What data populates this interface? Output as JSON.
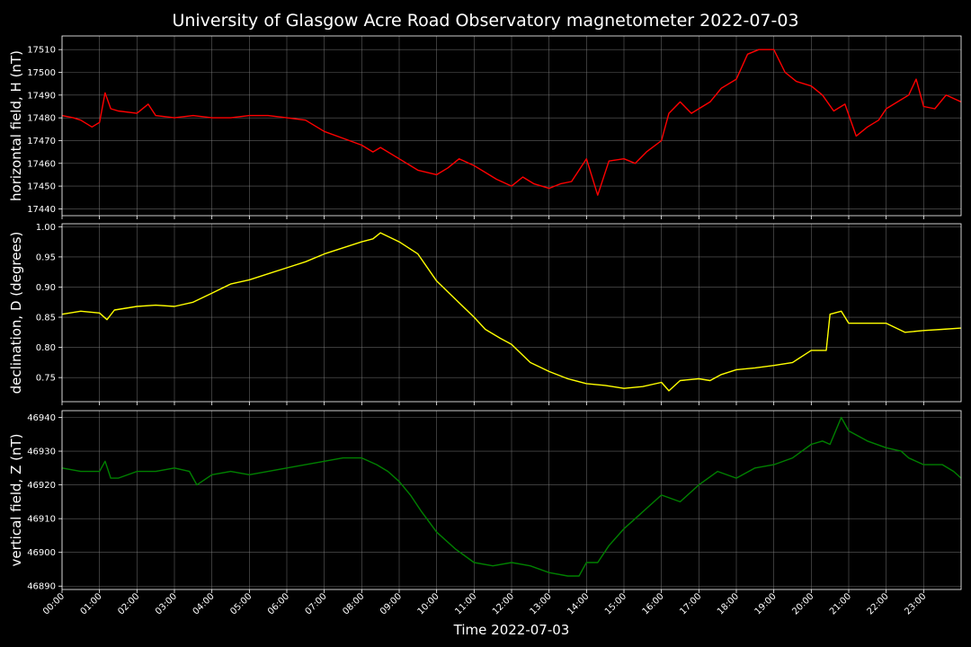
{
  "chart_data": {
    "title": "University of Glasgow Acre Road Observatory magnetometer 2022-07-03",
    "type": "line",
    "xlabel": "Time 2022-07-03",
    "x_tick_labels": [
      "00:00",
      "01:00",
      "02:00",
      "03:00",
      "04:00",
      "05:00",
      "06:00",
      "07:00",
      "08:00",
      "09:00",
      "10:00",
      "11:00",
      "12:00",
      "13:00",
      "14:00",
      "15:00",
      "16:00",
      "17:00",
      "18:00",
      "19:00",
      "20:00",
      "21:00",
      "22:00",
      "23:00"
    ],
    "xlim_hours": [
      0,
      24
    ],
    "grid": true,
    "panels": [
      {
        "ylabel": "horizontal field, H (nT)",
        "color": "#ff0000",
        "ylim": [
          17437,
          17516
        ],
        "yticks": [
          17440,
          17450,
          17460,
          17470,
          17480,
          17490,
          17500,
          17510
        ],
        "x": [
          0,
          0.3,
          0.5,
          0.8,
          1.0,
          1.15,
          1.3,
          1.5,
          2.0,
          2.3,
          2.5,
          3.0,
          3.5,
          4.0,
          4.5,
          5.0,
          5.5,
          6.0,
          6.5,
          7.0,
          7.5,
          8.0,
          8.3,
          8.5,
          9.0,
          9.5,
          10.0,
          10.3,
          10.6,
          11.0,
          11.3,
          11.6,
          12.0,
          12.3,
          12.6,
          13.0,
          13.3,
          13.6,
          14.0,
          14.3,
          14.6,
          15.0,
          15.3,
          15.6,
          16.0,
          16.2,
          16.5,
          16.8,
          17.0,
          17.3,
          17.6,
          18.0,
          18.3,
          18.6,
          19.0,
          19.3,
          19.6,
          20.0,
          20.3,
          20.6,
          20.9,
          21.2,
          21.5,
          21.8,
          22.0,
          22.3,
          22.6,
          22.8,
          23.0,
          23.3,
          23.6,
          24.0
        ],
        "values": [
          17481,
          17480,
          17479,
          17476,
          17478,
          17491,
          17484,
          17483,
          17482,
          17486,
          17481,
          17480,
          17481,
          17480,
          17480,
          17481,
          17481,
          17480,
          17479,
          17474,
          17471,
          17468,
          17465,
          17467,
          17462,
          17457,
          17455,
          17458,
          17462,
          17459,
          17456,
          17453,
          17450,
          17454,
          17451,
          17449,
          17451,
          17452,
          17462,
          17446,
          17461,
          17462,
          17460,
          17465,
          17470,
          17482,
          17487,
          17482,
          17484,
          17487,
          17493,
          17497,
          17508,
          17510,
          17510,
          17500,
          17496,
          17494,
          17490,
          17483,
          17486,
          17472,
          17476,
          17479,
          17484,
          17487,
          17490,
          17497,
          17485,
          17484,
          17490,
          17487
        ]
      },
      {
        "ylabel": "declination, D (degrees)",
        "color": "#ffff00",
        "ylim": [
          0.71,
          1.005
        ],
        "yticks": [
          0.75,
          0.8,
          0.85,
          0.9,
          0.95,
          1.0
        ],
        "x": [
          0,
          0.5,
          1.0,
          1.2,
          1.4,
          2.0,
          2.5,
          3.0,
          3.5,
          4.0,
          4.5,
          5.0,
          5.5,
          6.0,
          6.5,
          7.0,
          7.5,
          8.0,
          8.3,
          8.5,
          9.0,
          9.5,
          10.0,
          10.5,
          11.0,
          11.3,
          11.7,
          12.0,
          12.5,
          13.0,
          13.5,
          14.0,
          14.5,
          15.0,
          15.5,
          16.0,
          16.2,
          16.5,
          17.0,
          17.3,
          17.6,
          18.0,
          18.5,
          19.0,
          19.5,
          20.0,
          20.4,
          20.5,
          20.8,
          21.0,
          21.5,
          22.0,
          22.5,
          23.0,
          23.5,
          24.0
        ],
        "values": [
          0.855,
          0.86,
          0.857,
          0.846,
          0.862,
          0.868,
          0.87,
          0.868,
          0.875,
          0.89,
          0.905,
          0.912,
          0.922,
          0.932,
          0.942,
          0.955,
          0.965,
          0.975,
          0.98,
          0.99,
          0.975,
          0.955,
          0.91,
          0.88,
          0.85,
          0.83,
          0.815,
          0.805,
          0.775,
          0.76,
          0.748,
          0.74,
          0.737,
          0.732,
          0.735,
          0.742,
          0.728,
          0.745,
          0.748,
          0.745,
          0.755,
          0.763,
          0.766,
          0.77,
          0.775,
          0.795,
          0.795,
          0.855,
          0.86,
          0.84,
          0.84,
          0.84,
          0.825,
          0.828,
          0.83,
          0.832
        ]
      },
      {
        "ylabel": "vertical field, Z (nT)",
        "color": "#008000",
        "ylim": [
          46889,
          46942
        ],
        "yticks": [
          46890,
          46900,
          46910,
          46920,
          46930,
          46940
        ],
        "x": [
          0,
          0.5,
          1.0,
          1.15,
          1.3,
          1.5,
          2.0,
          2.5,
          3.0,
          3.4,
          3.6,
          4.0,
          4.5,
          5.0,
          5.5,
          6.0,
          6.5,
          7.0,
          7.5,
          8.0,
          8.4,
          8.7,
          9.0,
          9.3,
          9.6,
          10.0,
          10.5,
          11.0,
          11.5,
          12.0,
          12.5,
          13.0,
          13.5,
          13.8,
          14.0,
          14.3,
          14.6,
          15.0,
          15.3,
          15.6,
          16.0,
          16.5,
          17.0,
          17.5,
          18.0,
          18.5,
          19.0,
          19.5,
          20.0,
          20.3,
          20.5,
          20.8,
          21.0,
          21.5,
          22.0,
          22.4,
          22.6,
          23.0,
          23.5,
          23.8,
          24.0
        ],
        "values": [
          46925,
          46924,
          46924,
          46927,
          46922,
          46922,
          46924,
          46924,
          46925,
          46924,
          46920,
          46923,
          46924,
          46923,
          46924,
          46925,
          46926,
          46927,
          46928,
          46928,
          46926,
          46924,
          46921,
          46917,
          46912,
          46906,
          46901,
          46897,
          46896,
          46897,
          46896,
          46894,
          46893,
          46893,
          46897,
          46897,
          46902,
          46907,
          46910,
          46913,
          46917,
          46915,
          46920,
          46924,
          46922,
          46925,
          46926,
          46928,
          46932,
          46933,
          46932,
          46940,
          46936,
          46933,
          46931,
          46930,
          46928,
          46926,
          46926,
          46924,
          46922
        ]
      }
    ]
  }
}
